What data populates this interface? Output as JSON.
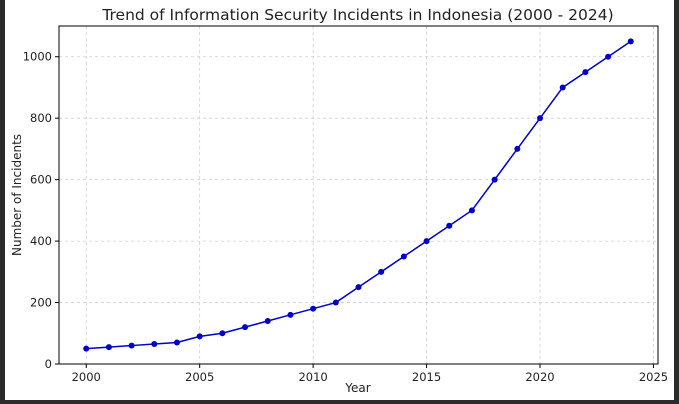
{
  "chart_data": {
    "type": "line",
    "title": "Trend of Information Security Incidents in Indonesia (2000 - 2024)",
    "xlabel": "Year",
    "ylabel": "Number of Incidents",
    "xlim": [
      1998.8,
      2025.2
    ],
    "ylim": [
      0,
      1100
    ],
    "xticks": [
      2000,
      2005,
      2010,
      2015,
      2020,
      2025
    ],
    "yticks": [
      0,
      200,
      400,
      600,
      800,
      1000
    ],
    "grid": true,
    "series": [
      {
        "color": "#0000cc",
        "marker": "circle",
        "x": [
          2000,
          2001,
          2002,
          2003,
          2004,
          2005,
          2006,
          2007,
          2008,
          2009,
          2010,
          2011,
          2012,
          2013,
          2014,
          2015,
          2016,
          2017,
          2018,
          2019,
          2020,
          2021,
          2022,
          2023,
          2024
        ],
        "y": [
          50,
          55,
          60,
          65,
          70,
          90,
          100,
          120,
          140,
          160,
          180,
          200,
          250,
          300,
          350,
          400,
          450,
          500,
          600,
          700,
          800,
          900,
          950,
          1000,
          1050
        ]
      }
    ]
  }
}
